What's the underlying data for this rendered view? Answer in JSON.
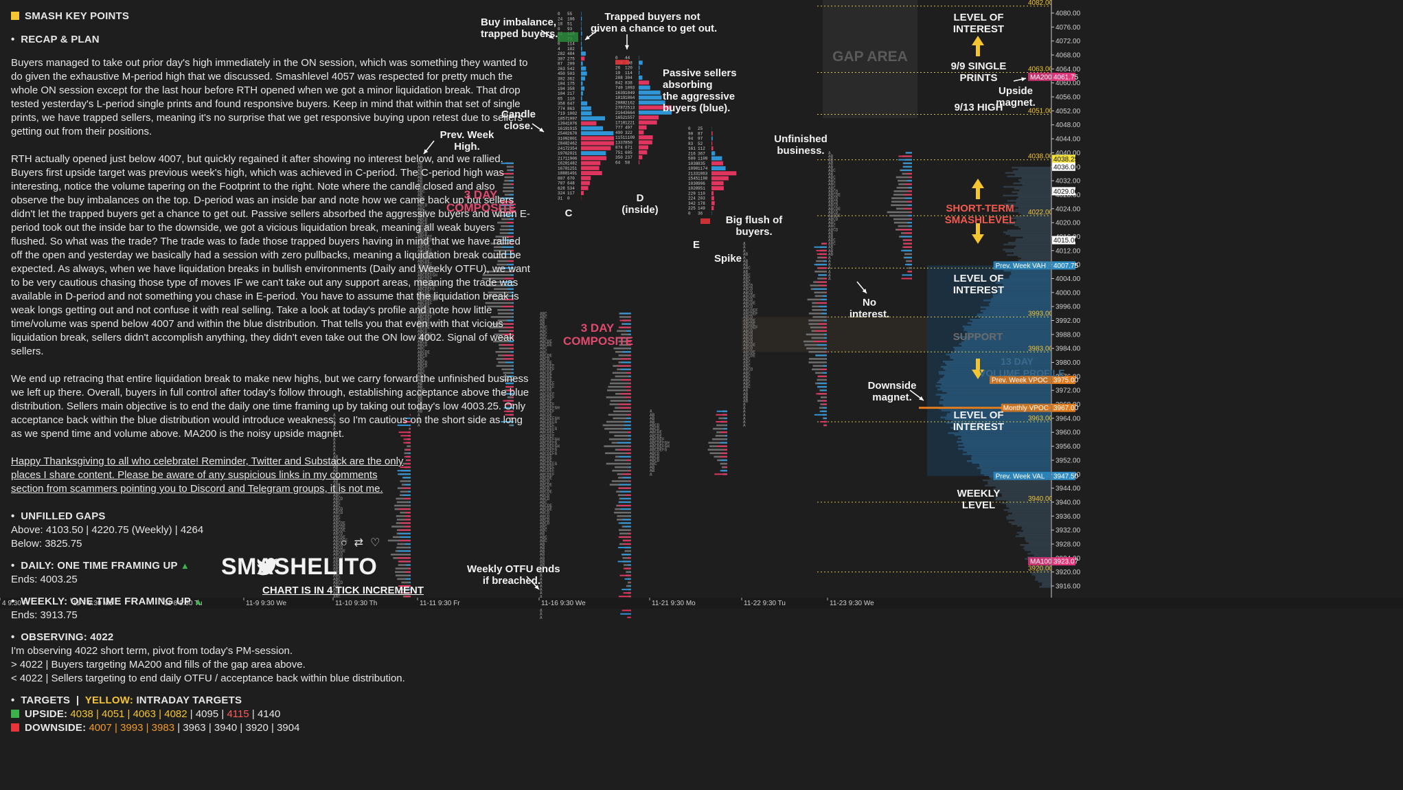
{
  "panel": {
    "title": "SMASH KEY POINTS",
    "recap_heading": "RECAP & PLAN",
    "paragraphs": [
      "Buyers managed to take out prior day's high immediately in the ON session, which was something they wanted to do given the exhaustive M-period high that we discussed. Smashlevel 4057 was respected for pretty much the whole ON session except for the last hour before RTH opened when we got a minor liquidation break. That drop tested yesterday's L-period single prints and found responsive buyers. Keep in mind that within that set of single prints, we have trapped sellers, meaning it's no surprise that we get responsive buying upon retest due to sellers getting out from their positions.",
      "RTH actually opened just below 4007, but quickly regained it after showing no interest below, and we rallied. Buyers first upside target was previous week's high, which was achieved in C-period. The C-period high was interesting, notice the volume tapering on the Footprint to the right. Note where the candle closed and also observe the buy imbalances on the top. D-period was an inside bar and note how we came back up but sellers didn't let the trapped buyers get a chance to get out. Passive sellers absorbed the aggressive buyers and when E-period took out the inside bar to the downside, we got a vicious liquidation break, meaning all weak buyers flushed. So what was the trade? The trade was to fade those trapped buyers having in mind that we have rallied off the open and yesterday we basically had a session with zero pullbacks, meaning a liquidation break could be expected. As always, when we have liquidation breaks in bullish environments (Daily and Weekly OTFU), we want to be very cautious chasing those type of moves IF we can't take out any support areas, meaning the trade was available in D-period and not something you chase in E-period. You have to assume that the liquidation break is weak longs getting out and not confuse it with real selling. Take a look at today's profile and note how little time/volume was spend below 4007 and within the blue distribution. That tells you that even with that vicious liquidation break, sellers didn't accomplish anything, they didn't even take out the ON low 4002. Signal of weak sellers.",
      "We end up retracing that entire liquidation break to make new highs, but we carry forward the unfinished business we left up there. Overall, buyers in full control after today's follow through, establishing acceptance above the blue distribution. Sellers main objective is to end the daily one time framing up by taking out today's low 4003.25. Only acceptance back within the blue distribution would introduce weakness, so I'm cautious on the short side as long as we spend time and volume above. MA200 is the noisy upside magnet."
    ],
    "footer_note": "Happy Thanksgiving to all who celebrate! Reminder, Twitter and Substack are the only places I share content. Please be aware of any suspicious links in my comments section from scammers pointing you to Discord and Telegram groups, it is not me.",
    "unfilled_gaps_heading": "UNFILLED GAPS",
    "gaps_above": "Above: 4103.50 | 4220.75 (Weekly) | 4264",
    "gaps_below": "Below: 3825.75",
    "daily_heading": "DAILY: ONE TIME FRAMING UP",
    "daily_ends": "Ends: 4003.25",
    "weekly_heading": "WEEKLY: ONE TIME FRAMING UP",
    "weekly_ends": "Ends: 3913.75",
    "observing_heading": "OBSERVING: 4022",
    "observing_lines": [
      "I'm observing 4022 short term, pivot from today's PM-session.",
      "> 4022 | Buyers targeting MA200 and fills of the gap area above.",
      "< 4022 | Sellers targeting to end daily OTFU / acceptance back within blue distribution."
    ],
    "targets_heading_a": "TARGETS",
    "targets_heading_b": "YELLOW:",
    "targets_heading_c": "INTRADAY TARGETS",
    "upside_label": "UPSIDE:",
    "upside_yellow": "4038 | 4051 | 4063 | 4082",
    "upside_white1": "4095",
    "upside_red": "4115",
    "upside_white2": "4140",
    "downside_label": "DOWNSIDE:",
    "downside_orange": "4007 | 3993 | 3983",
    "downside_white": "3963 | 3940 | 3920 | 3904",
    "colors": {
      "square_yellow": "#f4c531",
      "up_green": "#3cb34a",
      "down_red": "#e8353a"
    }
  },
  "brand": {
    "name": "SMASHELITO",
    "subtitle": "CHART IS IN 4 TICK INCREMENT",
    "social_icons": [
      "comment-icon",
      "retweet-icon",
      "heart-icon",
      "twitter-bird-icon"
    ]
  },
  "annotations": {
    "buy_imbalance": "Buy imbalance,\ntrapped buyers.",
    "trapped_buyers": "Trapped buyers not\ngiven a chance to get out.",
    "passive_sellers": "Passive sellers\nabsorbing\nthe aggressive\nbuyers (blue).",
    "candle_close": "Candle\nclose.",
    "prev_week_high": "Prev. Week High.",
    "composite_1": "3 DAY\nCOMPOSITE",
    "composite_2": "3 DAY\nCOMPOSITE",
    "period_c": "C",
    "period_d": "D\n(inside)",
    "period_e": "E",
    "big_flush": "Big flush of buyers.",
    "unfinished": "Unfinished business.",
    "spike": "Spike",
    "no_interest": "No interest.",
    "downside_magnet": "Downside magnet.",
    "upside_magnet": "Upside magnet.",
    "weekly_otfu": "Weekly OTFU ends\nif breached.",
    "gap_area": "GAP AREA",
    "support": "SUPPORT",
    "volume_profile": "13 DAY\nVOLUME PROFILE"
  },
  "right_labels": {
    "level_of_interest_1": "LEVEL OF INTEREST",
    "single_prints": "9/9 SINGLE PRINTS",
    "high_913": "9/13 HIGH",
    "short_term": "SHORT-TERM SMASHLEVEL",
    "level_of_interest_2": "LEVEL OF INTEREST",
    "level_of_interest_3": "LEVEL OF INTEREST",
    "weekly_level": "WEEKLY LEVEL"
  },
  "chart_data": {
    "type": "market-profile",
    "y_axis": {
      "min": 3916.0,
      "max": 4082.0,
      "ticks": [
        4080.0,
        4076.0,
        4072.0,
        4068.0,
        4064.0,
        4060.0,
        4056.0,
        4052.0,
        4048.0,
        4044.0,
        4040.0,
        4036.0,
        4032.0,
        4028.0,
        4024.0,
        4020.0,
        4016.0,
        4012.0,
        4008.0,
        4004.0,
        4000.0,
        3996.0,
        3992.0,
        3988.0,
        3984.0,
        3980.0,
        3976.0,
        3972.0,
        3968.0,
        3964.0,
        3960.0,
        3956.0,
        3952.0,
        3948.0,
        3944.0,
        3940.0,
        3936.0,
        3932.0,
        3928.0,
        3924.0,
        3920.0,
        3916.0
      ]
    },
    "levels": [
      {
        "value": 4082.0,
        "label": "4082.00",
        "color": "#f4c531"
      },
      {
        "value": 4063.0,
        "label": "4063.00",
        "color": "#f4c531"
      },
      {
        "value": 4051.0,
        "label": "4051.00",
        "color": "#f4c531"
      },
      {
        "value": 4038.0,
        "label": "4038.00",
        "color": "#f4c531"
      },
      {
        "value": 4022.0,
        "label": "4022.00",
        "color": "#f4c531"
      },
      {
        "value": 4007.0,
        "label": "4007.00",
        "color": "#f4c531"
      },
      {
        "value": 3993.0,
        "label": "3993.00",
        "color": "#f4c531"
      },
      {
        "value": 3983.0,
        "label": "3983.00",
        "color": "#f4c531"
      },
      {
        "value": 3963.0,
        "label": "3963.00",
        "color": "#f4c531"
      },
      {
        "value": 3940.0,
        "label": "3940.00",
        "color": "#f4c531"
      },
      {
        "value": 3920.0,
        "label": "3920.00",
        "color": "#f4c531"
      }
    ],
    "price_tags": [
      {
        "value": 4061.75,
        "label": "4061.75",
        "bg": "#e0357a",
        "name": "MA200"
      },
      {
        "value": 4038.25,
        "label": "4038.25",
        "bg": "#f4e23b"
      },
      {
        "value": 4036.0,
        "label": "4036.00",
        "bg": "#ffffff"
      },
      {
        "value": 4029.0,
        "label": "4029.00",
        "bg": "#ffffff"
      },
      {
        "value": 4015.0,
        "label": "4015.00",
        "bg": "#ffffff"
      },
      {
        "value": 4007.75,
        "label": "4007.75",
        "bg": "#2d8cc4",
        "name": "Prev. Week VAH"
      },
      {
        "value": 3975.0,
        "label": "3975.00",
        "bg": "#e07b1e",
        "name": "Prev. Week VPOC"
      },
      {
        "value": 3967.0,
        "label": "3967.00",
        "bg": "#e07b1e",
        "name": "Monthly VPOC"
      },
      {
        "value": 3947.5,
        "label": "3947.50",
        "bg": "#2d8cc4",
        "name": "Prev. Week VAL"
      },
      {
        "value": 3923.07,
        "label": "3923.07",
        "bg": "#e0357a",
        "name": "MA100"
      }
    ],
    "x_axis_labels": [
      "4 9:30 Fr",
      "11-7 9:30 Mo",
      "11-8 9:30 Tu",
      "11-9 9:30 We",
      "11-10 9:30 Th",
      "11-11 9:30 Fr",
      "11-16 9:30 We",
      "11-21 9:30 Mo",
      "11-22 9:30 Tu",
      "11-23 9:30 We"
    ],
    "footprint_c": {
      "rows": [
        [
          "0",
          "55"
        ],
        [
          "24",
          "106"
        ],
        [
          "18",
          "51"
        ],
        [
          "0",
          "93"
        ],
        [
          "62",
          "115"
        ],
        [
          "1",
          "73"
        ],
        [
          "0",
          "114"
        ],
        [
          "4",
          "182"
        ],
        [
          "282",
          "484"
        ],
        [
          "307",
          "275"
        ],
        [
          "87",
          "209"
        ],
        [
          "263",
          "542"
        ],
        [
          "450",
          "503"
        ],
        [
          "302",
          "362"
        ],
        [
          "104",
          "175"
        ],
        [
          "194",
          "358"
        ],
        [
          "104",
          "217"
        ],
        [
          "65",
          "110"
        ],
        [
          "358",
          "647"
        ],
        [
          "774",
          "863"
        ],
        [
          "719",
          "1002"
        ],
        [
          "1857",
          "1997"
        ],
        [
          "1394",
          "1076"
        ],
        [
          "1619",
          "1915"
        ],
        [
          "2540",
          "2670"
        ],
        [
          "3109",
          "2801"
        ],
        [
          "2848",
          "2462"
        ],
        [
          "2417",
          "2354"
        ],
        [
          "1976",
          "2021"
        ],
        [
          "2171",
          "1906"
        ],
        [
          "1628",
          "1482"
        ],
        [
          "1678",
          "1251"
        ],
        [
          "1888",
          "1491"
        ],
        [
          "887",
          "670"
        ],
        [
          "787",
          "648"
        ],
        [
          "628",
          "534"
        ],
        [
          "324",
          "117"
        ],
        [
          "31",
          "0"
        ]
      ]
    },
    "footprint_d": {
      "rows": [
        [
          "0",
          "44"
        ],
        [
          "228",
          "398"
        ],
        [
          "26",
          "120"
        ],
        [
          "19",
          "114"
        ],
        [
          "288",
          "304"
        ],
        [
          "842",
          "838"
        ],
        [
          "749",
          "1093"
        ],
        [
          "1639",
          "1849"
        ],
        [
          "1819",
          "1864"
        ],
        [
          "2088",
          "2162"
        ],
        [
          "2787",
          "2513"
        ],
        [
          "2164",
          "3664"
        ],
        [
          "1652",
          "1557"
        ],
        [
          "1710",
          "1221"
        ],
        [
          "777",
          "497"
        ],
        [
          "490",
          "322"
        ],
        [
          "1151",
          "1109"
        ],
        [
          "1337",
          "850"
        ],
        [
          "874",
          "671"
        ],
        [
          "751",
          "605"
        ],
        [
          "350",
          "237"
        ],
        [
          "64",
          "58"
        ]
      ]
    },
    "footprint_e": {
      "rows": [
        [
          "0",
          "25"
        ],
        [
          "90",
          "87"
        ],
        [
          "94",
          "97"
        ],
        [
          "83",
          "52"
        ],
        [
          "161",
          "112"
        ],
        [
          "216",
          "367"
        ],
        [
          "589",
          "1109"
        ],
        [
          "1038",
          "835"
        ],
        [
          "1090",
          "1174"
        ],
        [
          "2133",
          "1863"
        ],
        [
          "1545",
          "1198"
        ],
        [
          "1030",
          "906"
        ],
        [
          "1020",
          "951"
        ],
        [
          "229",
          "110"
        ],
        [
          "224",
          "203"
        ],
        [
          "342",
          "178"
        ],
        [
          "225",
          "149"
        ],
        [
          "0",
          "36"
        ]
      ]
    },
    "volume_profile_13day": "horizontal histogram across price axis"
  }
}
